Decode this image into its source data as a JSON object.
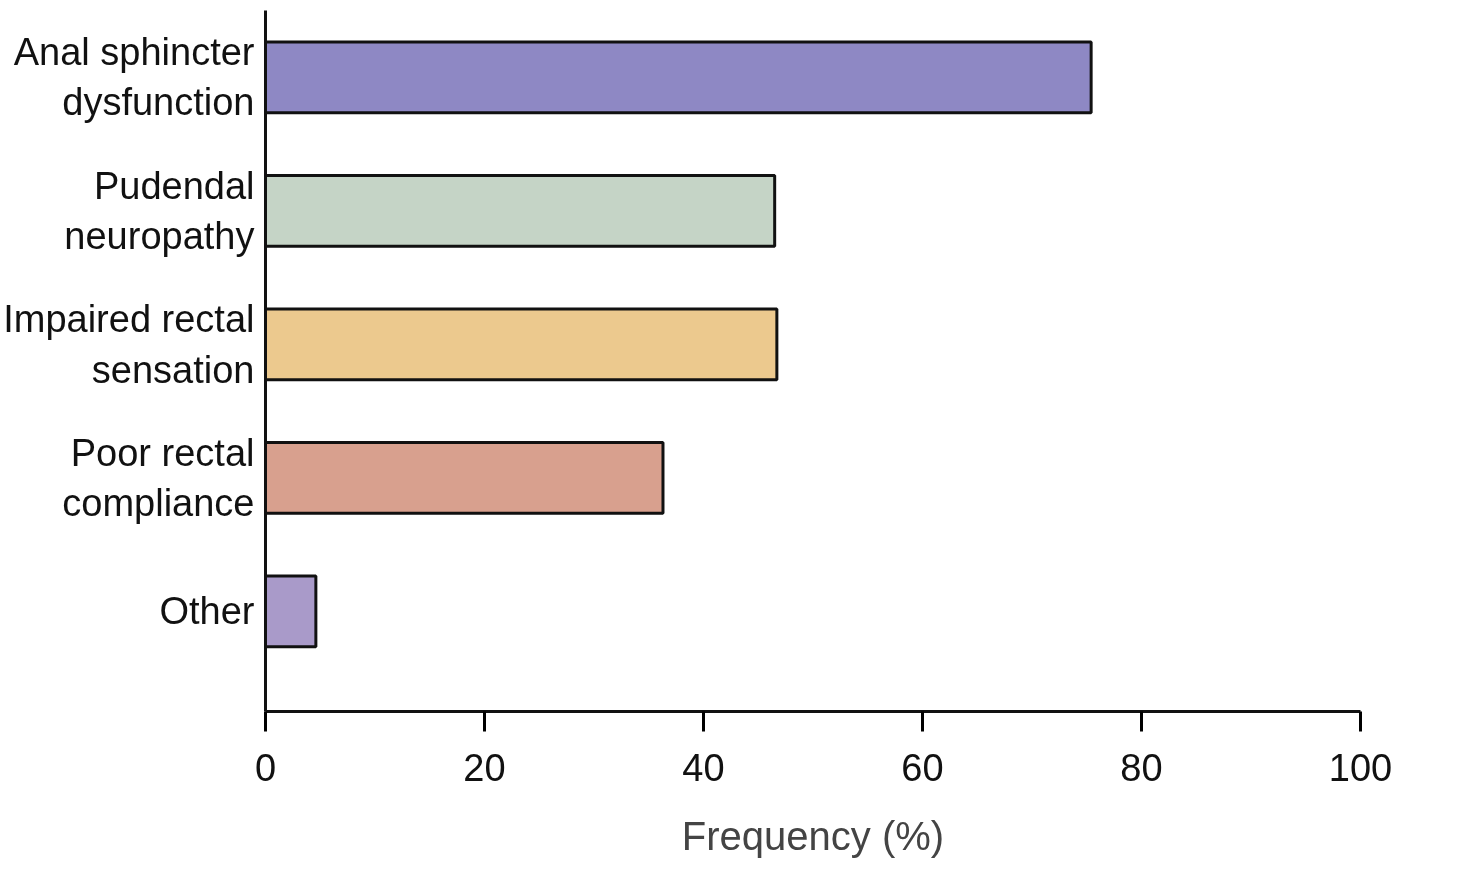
{
  "chart_data": {
    "type": "bar",
    "orientation": "horizontal",
    "xlabel": "Frequency (%)",
    "categories": [
      "Anal sphincter dysfunction",
      "Pudendal neuropathy",
      "Impaired rectal sensation",
      "Poor rectal compliance",
      "Other"
    ],
    "values": [
      75.4,
      46.5,
      46.7,
      36.3,
      4.6
    ],
    "colors": [
      "#8e88c4",
      "#c5d4c6",
      "#ecc98e",
      "#d8a08e",
      "#a99ac9"
    ],
    "xlim": [
      0,
      100
    ],
    "xticks": [
      0,
      20,
      40,
      60,
      80,
      100
    ],
    "grid": false
  }
}
